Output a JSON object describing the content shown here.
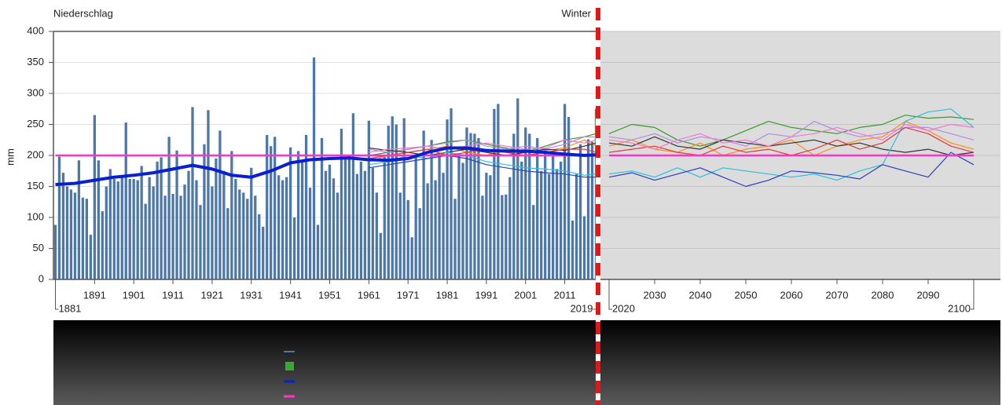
{
  "chart_data": [
    {
      "type": "bar",
      "title": "Niederschlag",
      "subtitle": "Winter",
      "ylabel": "mm",
      "x": [
        1881,
        1882,
        1883,
        1884,
        1885,
        1886,
        1887,
        1888,
        1889,
        1890,
        1891,
        1892,
        1893,
        1894,
        1895,
        1896,
        1897,
        1898,
        1899,
        1900,
        1901,
        1902,
        1903,
        1904,
        1905,
        1906,
        1907,
        1908,
        1909,
        1910,
        1911,
        1912,
        1913,
        1914,
        1915,
        1916,
        1917,
        1918,
        1919,
        1920,
        1921,
        1922,
        1923,
        1924,
        1925,
        1926,
        1927,
        1928,
        1929,
        1930,
        1931,
        1932,
        1933,
        1934,
        1935,
        1936,
        1937,
        1938,
        1939,
        1940,
        1941,
        1942,
        1943,
        1944,
        1945,
        1946,
        1947,
        1948,
        1949,
        1950,
        1951,
        1952,
        1953,
        1954,
        1955,
        1956,
        1957,
        1958,
        1959,
        1960,
        1961,
        1962,
        1963,
        1964,
        1965,
        1966,
        1967,
        1968,
        1969,
        1970,
        1971,
        1972,
        1973,
        1974,
        1975,
        1976,
        1977,
        1978,
        1979,
        1980,
        1981,
        1982,
        1983,
        1984,
        1985,
        1986,
        1987,
        1988,
        1989,
        1990,
        1991,
        1992,
        1993,
        1994,
        1995,
        1996,
        1997,
        1998,
        1999,
        2000,
        2001,
        2002,
        2003,
        2004,
        2005,
        2006,
        2007,
        2008,
        2009,
        2010,
        2011,
        2012,
        2013,
        2014,
        2015,
        2016,
        2017,
        2018,
        2019
      ],
      "values": [
        88,
        198,
        172,
        150,
        145,
        140,
        192,
        132,
        130,
        72,
        265,
        192,
        110,
        150,
        178,
        162,
        158,
        168,
        253,
        162,
        162,
        160,
        183,
        122,
        165,
        150,
        190,
        197,
        135,
        230,
        138,
        208,
        135,
        153,
        175,
        278,
        160,
        120,
        218,
        273,
        150,
        195,
        240,
        175,
        115,
        207,
        162,
        145,
        140,
        130,
        180,
        135,
        105,
        85,
        233,
        215,
        230,
        168,
        160,
        165,
        213,
        100,
        207,
        190,
        233,
        148,
        358,
        88,
        228,
        175,
        185,
        163,
        140,
        243,
        195,
        200,
        268,
        170,
        190,
        175,
        256,
        180,
        140,
        75,
        198,
        248,
        263,
        250,
        140,
        260,
        128,
        68,
        202,
        115,
        240,
        155,
        225,
        160,
        200,
        172,
        258,
        276,
        130,
        200,
        188,
        245,
        236,
        235,
        228,
        135,
        172,
        168,
        275,
        283,
        136,
        137,
        165,
        235,
        292,
        190,
        245,
        235,
        120,
        228,
        175,
        210,
        170,
        200,
        178,
        190,
        283,
        262,
        95,
        170,
        218,
        102,
        226,
        222,
        275
      ],
      "color": "#4d77a8",
      "last_color": "#3aa832",
      "xlim": [
        1881,
        2019
      ],
      "xticks": [
        1891,
        1901,
        1911,
        1921,
        1931,
        1941,
        1951,
        1961,
        1971,
        1981,
        1991,
        2001,
        2011
      ],
      "ylim": [
        0,
        400
      ],
      "yticks": [
        0,
        50,
        100,
        150,
        200,
        250,
        300,
        350,
        400
      ],
      "grid": true,
      "series": [
        {
          "color": "#3a9a2a",
          "x": [
            1961,
            1966,
            1971,
            1976,
            1981,
            1986,
            1991,
            1996,
            2001,
            2006,
            2011,
            2016,
            2019
          ],
          "values": [
            200,
            205,
            210,
            215,
            222,
            225,
            218,
            212,
            205,
            215,
            225,
            230,
            235
          ]
        },
        {
          "color": "#ff8c1a",
          "x": [
            1961,
            1966,
            1971,
            1976,
            1981,
            1986,
            1991,
            1996,
            2001,
            2006,
            2011,
            2016,
            2019
          ],
          "values": [
            190,
            200,
            205,
            210,
            215,
            205,
            200,
            210,
            205,
            208,
            212,
            225,
            215
          ]
        },
        {
          "color": "#b48be0",
          "x": [
            1961,
            1966,
            1971,
            1976,
            1981,
            1986,
            1991,
            1996,
            2001,
            2006,
            2011,
            2016,
            2019
          ],
          "values": [
            210,
            205,
            210,
            215,
            220,
            225,
            215,
            210,
            215,
            210,
            218,
            230,
            230
          ]
        },
        {
          "color": "#333333",
          "x": [
            1961,
            1966,
            1971,
            1976,
            1981,
            1986,
            1991,
            1996,
            2001,
            2006,
            2011,
            2016,
            2019
          ],
          "values": [
            212,
            208,
            205,
            200,
            205,
            210,
            205,
            200,
            205,
            210,
            208,
            215,
            220
          ]
        },
        {
          "color": "#2cc0d8",
          "x": [
            1961,
            1966,
            1971,
            1976,
            1981,
            1986,
            1991,
            1996,
            2001,
            2006,
            2011,
            2016,
            2019
          ],
          "values": [
            185,
            190,
            200,
            195,
            205,
            200,
            190,
            185,
            180,
            178,
            175,
            168,
            170
          ]
        },
        {
          "color": "#2a3fc0",
          "x": [
            1961,
            1966,
            1971,
            1976,
            1981,
            1986,
            1991,
            1996,
            2001,
            2006,
            2011,
            2016,
            2019
          ],
          "values": [
            180,
            185,
            190,
            195,
            200,
            195,
            185,
            180,
            175,
            172,
            170,
            165,
            165
          ]
        },
        {
          "color": "#e03a3a",
          "x": [
            1961,
            1966,
            1971,
            1976,
            1981,
            1986,
            1991,
            1996,
            2001,
            2006,
            2011,
            2016,
            2019
          ],
          "values": [
            195,
            200,
            205,
            210,
            200,
            205,
            210,
            205,
            200,
            205,
            210,
            210,
            205
          ]
        },
        {
          "color": "#f07ad0",
          "x": [
            1961,
            1966,
            1971,
            1976,
            1981,
            1986,
            1991,
            1996,
            2001,
            2006,
            2011,
            2016,
            2019
          ],
          "values": [
            205,
            210,
            212,
            215,
            210,
            215,
            220,
            215,
            210,
            212,
            225,
            220,
            225
          ]
        },
        {
          "color": "#ff33cc",
          "width": 2.5,
          "x": [
            1881,
            2019
          ],
          "values": [
            200,
            200
          ]
        },
        {
          "color": "#0a1fd0",
          "width": 4,
          "x": [
            1881,
            1886,
            1891,
            1896,
            1901,
            1906,
            1911,
            1916,
            1921,
            1926,
            1931,
            1936,
            1941,
            1946,
            1951,
            1956,
            1961,
            1966,
            1971,
            1976,
            1981,
            1986,
            1991,
            1996,
            2001,
            2006,
            2011,
            2016,
            2019
          ],
          "values": [
            153,
            155,
            160,
            165,
            168,
            172,
            178,
            184,
            178,
            168,
            165,
            175,
            188,
            193,
            195,
            196,
            193,
            192,
            195,
            205,
            212,
            212,
            208,
            207,
            207,
            205,
            202,
            200,
            201
          ]
        }
      ]
    },
    {
      "type": "line",
      "background": "#dcdcdc",
      "x": [
        2020,
        2025,
        2030,
        2035,
        2040,
        2045,
        2050,
        2055,
        2060,
        2065,
        2070,
        2075,
        2080,
        2085,
        2090,
        2095,
        2100
      ],
      "xlim": [
        2020,
        2100
      ],
      "xticks": [
        2030,
        2040,
        2050,
        2060,
        2070,
        2080,
        2090
      ],
      "ylim": [
        0,
        400
      ],
      "yticks": [
        0,
        50,
        100,
        150,
        200,
        250,
        300,
        350,
        400
      ],
      "grid": true,
      "series": [
        {
          "color": "#3a9a2a",
          "values": [
            235,
            250,
            245,
            225,
            215,
            225,
            240,
            255,
            245,
            240,
            235,
            245,
            250,
            265,
            260,
            262,
            258
          ]
        },
        {
          "color": "#ff8c1a",
          "values": [
            215,
            225,
            210,
            205,
            220,
            200,
            210,
            215,
            225,
            200,
            215,
            225,
            230,
            255,
            240,
            220,
            210
          ]
        },
        {
          "color": "#b48be0",
          "values": [
            230,
            225,
            235,
            220,
            230,
            225,
            215,
            235,
            230,
            255,
            240,
            230,
            235,
            245,
            245,
            235,
            225
          ]
        },
        {
          "color": "#333333",
          "values": [
            220,
            215,
            230,
            215,
            210,
            225,
            220,
            215,
            220,
            225,
            215,
            220,
            210,
            205,
            210,
            200,
            205
          ]
        },
        {
          "color": "#2cc0d8",
          "values": [
            170,
            175,
            165,
            180,
            165,
            180,
            175,
            170,
            165,
            170,
            160,
            175,
            185,
            255,
            270,
            275,
            245
          ]
        },
        {
          "color": "#2a3fc0",
          "values": [
            165,
            172,
            160,
            170,
            180,
            165,
            150,
            160,
            175,
            172,
            168,
            162,
            185,
            175,
            165,
            205,
            185
          ]
        },
        {
          "color": "#e03a3a",
          "values": [
            205,
            210,
            215,
            205,
            200,
            215,
            205,
            210,
            200,
            210,
            225,
            210,
            220,
            245,
            235,
            215,
            205
          ]
        },
        {
          "color": "#f07ad0",
          "values": [
            225,
            220,
            210,
            225,
            235,
            220,
            225,
            215,
            230,
            235,
            245,
            235,
            225,
            250,
            240,
            250,
            245
          ]
        },
        {
          "color": "#ff33cc",
          "width": 2.5,
          "values": [
            200,
            200,
            200,
            200,
            200,
            200,
            200,
            200,
            200,
            200,
            200,
            200,
            200,
            200,
            200,
            200,
            200
          ]
        }
      ]
    }
  ]
}
